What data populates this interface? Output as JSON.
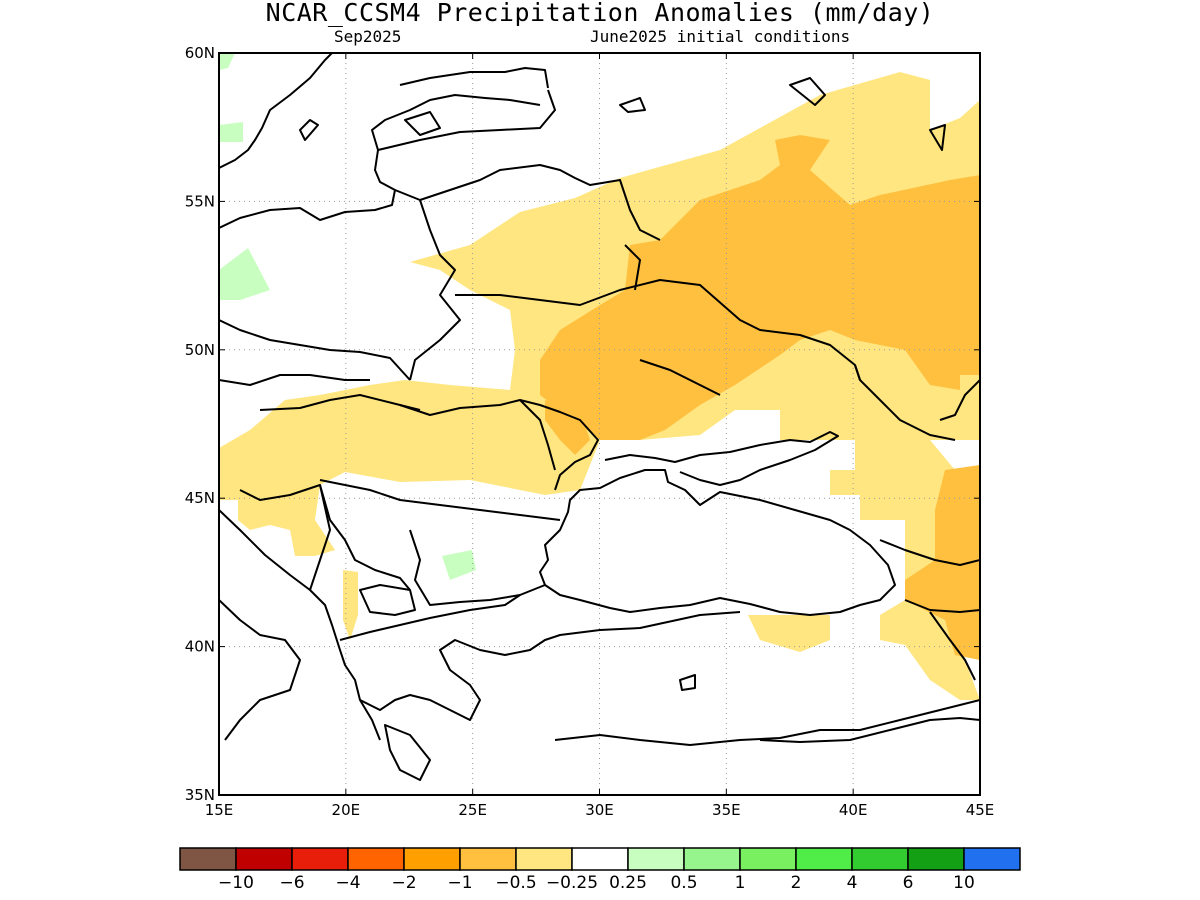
{
  "header": {
    "title": "NCAR_CCSM4 Precipitation Anomalies (mm/day)",
    "valid_month": "Sep2025",
    "init_conditions": "June2025 initial conditions"
  },
  "map": {
    "lon_range": [
      15,
      45
    ],
    "lat_range": [
      35,
      60
    ],
    "lon_ticks": [
      {
        "value": 15,
        "label": "15E"
      },
      {
        "value": 20,
        "label": "20E"
      },
      {
        "value": 25,
        "label": "25E"
      },
      {
        "value": 30,
        "label": "30E"
      },
      {
        "value": 35,
        "label": "35E"
      },
      {
        "value": 40,
        "label": "40E"
      },
      {
        "value": 45,
        "label": "45E"
      }
    ],
    "lat_ticks": [
      {
        "value": 60,
        "label": "60N"
      },
      {
        "value": 55,
        "label": "55N"
      },
      {
        "value": 50,
        "label": "50N"
      },
      {
        "value": 45,
        "label": "45N"
      },
      {
        "value": 40,
        "label": "40N"
      },
      {
        "value": 35,
        "label": "35N"
      }
    ],
    "grid": "dotted",
    "fills": {
      "light_orange": "#ffe680",
      "orange": "#ffc040",
      "light_green": "#c8ffc0"
    }
  },
  "colorbar": {
    "colors": [
      "#7f5544",
      "#c00000",
      "#e81e0a",
      "#ff6400",
      "#ffa000",
      "#ffc040",
      "#ffe680",
      "#ffffff",
      "#c8ffc0",
      "#96f58c",
      "#78f060",
      "#50ec48",
      "#32cc30",
      "#14a014",
      "#2070f0"
    ],
    "labels": [
      "−10",
      "−6",
      "−4",
      "−2",
      "−1",
      "−0.5",
      "−0.25",
      "0.25",
      "0.5",
      "1",
      "2",
      "4",
      "6",
      "10"
    ]
  }
}
